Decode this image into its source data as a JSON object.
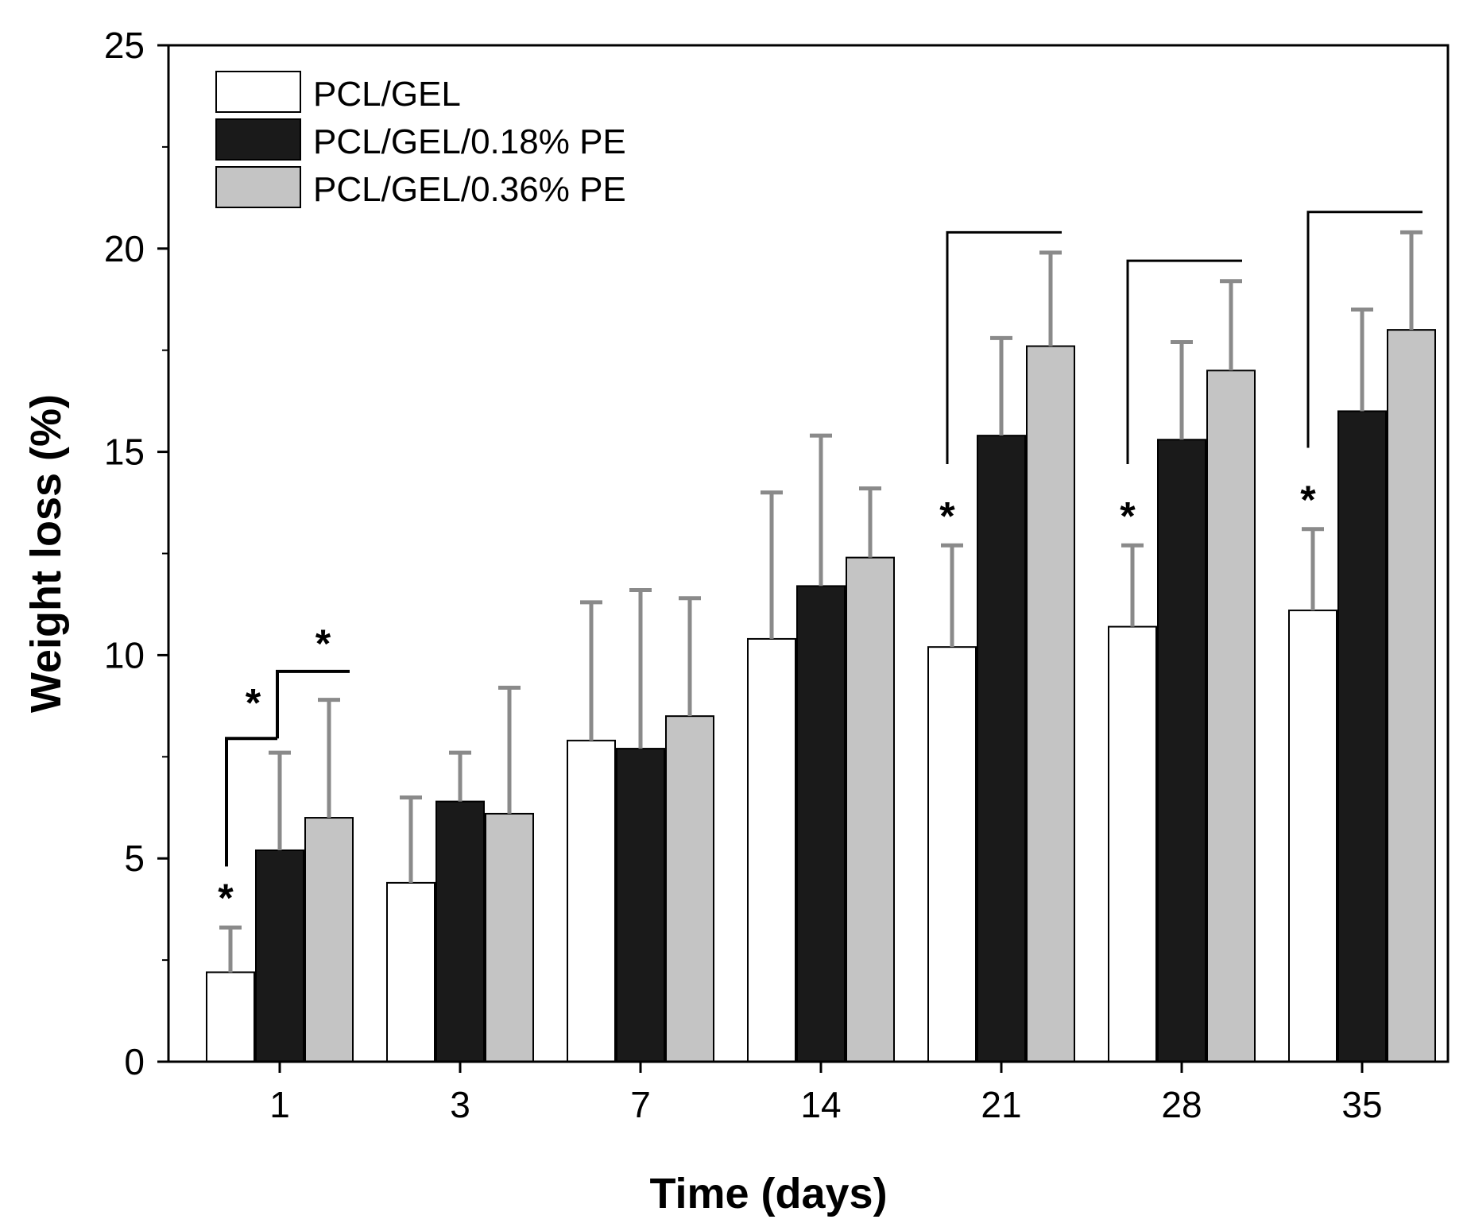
{
  "chart_data": {
    "type": "bar",
    "xlabel": "Time (days)",
    "ylabel": "Weight loss (%)",
    "ylim": [
      0,
      25
    ],
    "yticks": [
      0,
      5,
      10,
      15,
      20,
      25
    ],
    "categories": [
      "1",
      "3",
      "7",
      "14",
      "21",
      "28",
      "35"
    ],
    "series": [
      {
        "name": "PCL/GEL",
        "color": "#ffffff",
        "values": [
          2.2,
          4.4,
          7.9,
          10.4,
          10.2,
          10.7,
          11.1
        ],
        "errors": [
          1.1,
          2.1,
          3.4,
          3.6,
          2.5,
          2.0,
          2.0
        ]
      },
      {
        "name": "PCL/GEL/0.18% PE",
        "color": "#1a1a1a",
        "values": [
          5.2,
          6.4,
          7.7,
          11.7,
          15.4,
          15.3,
          16.0
        ],
        "errors": [
          2.4,
          1.2,
          3.9,
          3.7,
          2.4,
          2.4,
          2.5
        ]
      },
      {
        "name": "PCL/GEL/0.36% PE",
        "color": "#c4c4c4",
        "values": [
          6.0,
          6.1,
          8.5,
          12.4,
          17.6,
          17.0,
          18.0
        ],
        "errors": [
          2.9,
          3.1,
          2.9,
          1.7,
          2.3,
          2.2,
          2.4
        ]
      }
    ],
    "legend_position": "top-left",
    "significance": {
      "symbol": "*",
      "markers": [
        {
          "category": "1",
          "series": 0
        },
        {
          "category": "21",
          "series": 0
        },
        {
          "category": "28",
          "series": 0
        },
        {
          "category": "35",
          "series": 0
        }
      ],
      "brackets": [
        {
          "category": "1",
          "from_series": 0,
          "to_series": 1,
          "star": true
        },
        {
          "category": "1",
          "from_series": 1,
          "to_series": 2,
          "star": true
        },
        {
          "category": "21",
          "from_series": 0,
          "to_series": 2,
          "star": false
        },
        {
          "category": "28",
          "from_series": 0,
          "to_series": 2,
          "star": false
        },
        {
          "category": "35",
          "from_series": 0,
          "to_series": 2,
          "star": false
        }
      ]
    }
  }
}
